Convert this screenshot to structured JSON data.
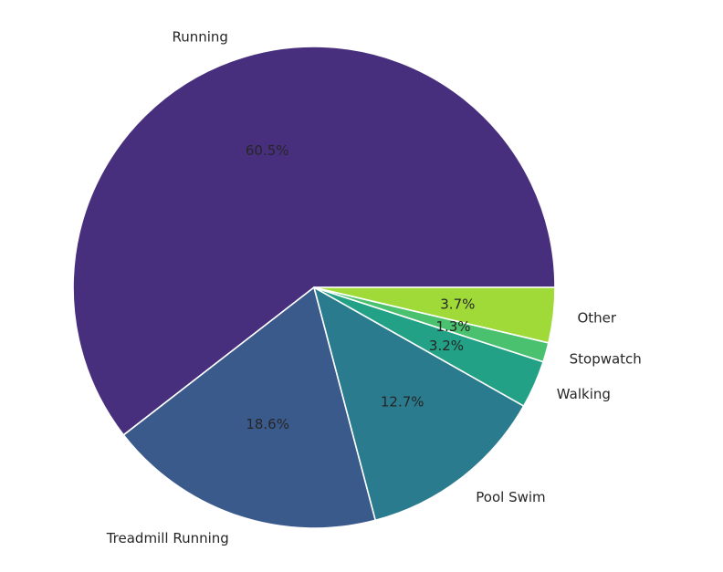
{
  "chart_data": {
    "type": "pie",
    "title": "",
    "start_angle_deg": 0,
    "direction": "counterclockwise",
    "slices": [
      {
        "label": "Running",
        "value": 60.5,
        "pct_label": "60.5%",
        "color": "#472f7d"
      },
      {
        "label": "Treadmill Running",
        "value": 18.6,
        "pct_label": "18.6%",
        "color": "#3a5a8c"
      },
      {
        "label": "Pool Swim",
        "value": 12.7,
        "pct_label": "12.7%",
        "color": "#2a7b8e"
      },
      {
        "label": "Walking",
        "value": 3.2,
        "pct_label": "3.2%",
        "color": "#23a186"
      },
      {
        "label": "Stopwatch",
        "value": 1.3,
        "pct_label": "1.3%",
        "color": "#49c16e"
      },
      {
        "label": "Other",
        "value": 3.7,
        "pct_label": "3.7%",
        "color": "#a0da39"
      }
    ]
  }
}
